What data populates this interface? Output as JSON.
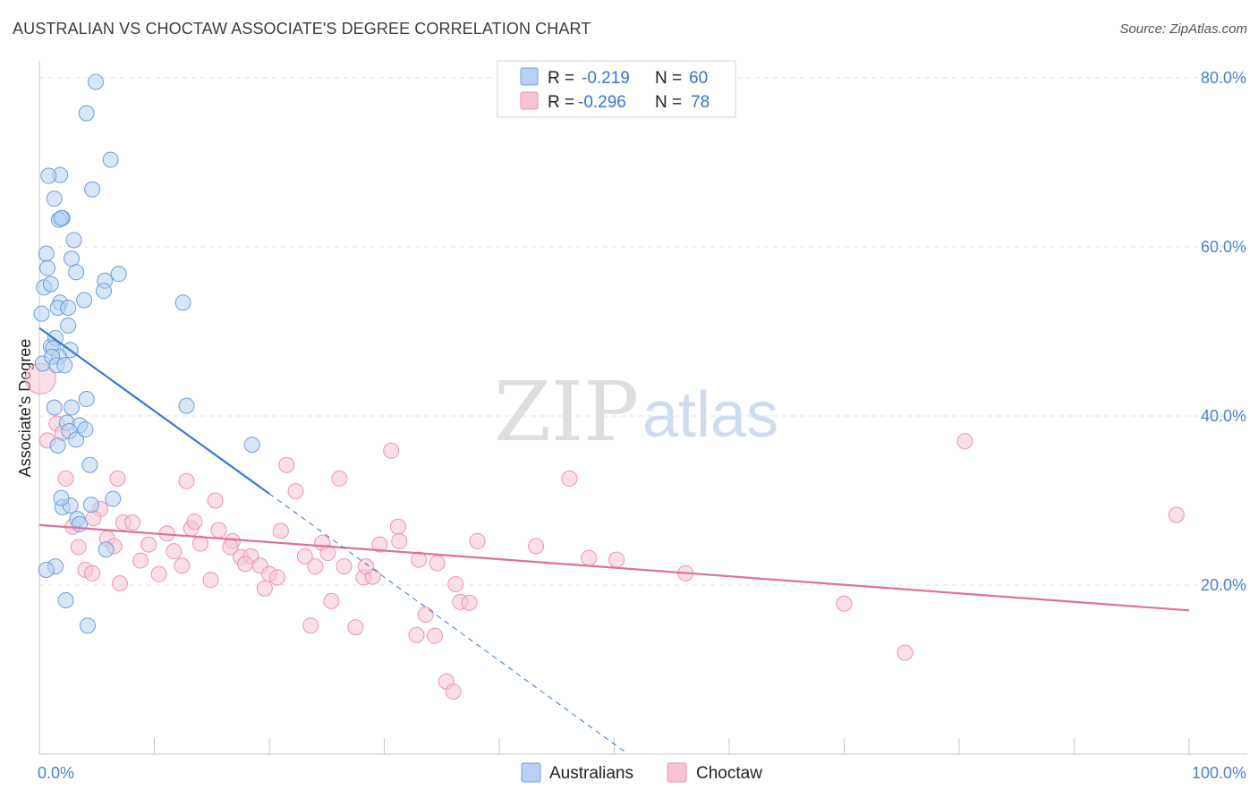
{
  "title": "AUSTRALIAN VS CHOCTAW ASSOCIATE'S DEGREE CORRELATION CHART",
  "source": "Source: ZipAtlas.com",
  "watermark": {
    "zip": "ZIP",
    "atlas": "atlas"
  },
  "colors": {
    "australians_fill": "#b8d1f3",
    "australians_stroke": "#6e9fe0",
    "australians_line": "#3a78d6",
    "choctaw_fill": "#f8c4d4",
    "choctaw_stroke": "#ee93b2",
    "choctaw_line": "#e0709a",
    "tick_text": "#4a7fd4",
    "grid": "#e2e2e2"
  },
  "legend_stats": [
    {
      "r_label": "R =",
      "r_value": "-0.219",
      "n_label": "N =",
      "n_value": "60"
    },
    {
      "r_label": "R =",
      "r_value": "-0.296",
      "n_label": "N =",
      "n_value": "78"
    }
  ],
  "chart_data": {
    "type": "scatter",
    "xlabel": "",
    "ylabel": "Associate's Degree",
    "xlim": [
      0,
      100
    ],
    "ylim": [
      0,
      82
    ],
    "x_tick_labels": [
      "0.0%",
      "100.0%"
    ],
    "y_ticks": [
      20,
      40,
      60,
      80
    ],
    "y_tick_labels": [
      "20.0%",
      "40.0%",
      "60.0%",
      "80.0%"
    ],
    "grid": true,
    "legend_position": "bottom-center",
    "series": [
      {
        "name": "Australians",
        "x": [
          4.9,
          4.1,
          1.8,
          2.0,
          6.2,
          0.8,
          1.3,
          1.7,
          1.9,
          4.6,
          3.0,
          0.6,
          0.7,
          0.4,
          2.8,
          3.2,
          5.7,
          6.9,
          1.8,
          0.2,
          1.6,
          2.5,
          0.3,
          1.0,
          1.4,
          1.2,
          2.7,
          1.7,
          1.1,
          1.5,
          2.2,
          3.9,
          5.6,
          2.5,
          1.6,
          2.8,
          1.3,
          2.4,
          3.5,
          2.6,
          4.1,
          3.2,
          4.4,
          6.4,
          2.0,
          2.7,
          3.3,
          1.9,
          3.5,
          1.4,
          0.6,
          5.8,
          2.3,
          4.2,
          4.0,
          4.5,
          1.0,
          12.5,
          12.8,
          18.5
        ],
        "y": [
          79.5,
          75.8,
          68.5,
          63.4,
          70.3,
          68.4,
          65.7,
          63.2,
          63.4,
          66.8,
          60.8,
          59.2,
          57.5,
          55.2,
          58.6,
          57.0,
          56.0,
          56.8,
          53.4,
          52.1,
          52.8,
          52.8,
          46.2,
          48.2,
          49.2,
          48.0,
          47.8,
          47.0,
          47.0,
          46.0,
          46.0,
          53.7,
          54.8,
          50.7,
          36.5,
          41.0,
          41.0,
          39.2,
          38.9,
          38.2,
          42.0,
          37.2,
          34.2,
          30.2,
          29.2,
          29.4,
          27.8,
          30.3,
          27.2,
          22.2,
          21.8,
          24.2,
          18.2,
          15.2,
          38.4,
          29.5,
          55.6,
          53.4,
          41.2,
          36.6
        ]
      },
      {
        "name": "Choctaw",
        "x": [
          0.1,
          0.7,
          1.5,
          2.0,
          2.9,
          3.4,
          4.0,
          4.6,
          5.3,
          5.9,
          6.5,
          7.0,
          7.3,
          8.1,
          8.8,
          9.5,
          10.4,
          11.1,
          11.7,
          12.4,
          13.2,
          14.0,
          14.9,
          15.6,
          16.8,
          17.5,
          18.4,
          19.2,
          20.0,
          20.7,
          21.5,
          22.3,
          23.1,
          24.0,
          24.6,
          25.4,
          26.1,
          27.5,
          28.2,
          29.0,
          30.6,
          31.2,
          32.8,
          33.6,
          34.4,
          35.4,
          36.0,
          36.6,
          37.4,
          38.1,
          12.8,
          13.5,
          15.3,
          16.6,
          17.9,
          19.6,
          21.0,
          23.6,
          25.1,
          26.5,
          28.4,
          29.6,
          31.3,
          33.0,
          34.6,
          36.2,
          43.2,
          46.1,
          47.8,
          50.2,
          56.2,
          70.0,
          75.3,
          80.5,
          98.9,
          2.3,
          4.7,
          6.8
        ],
        "y": [
          44.4,
          37.1,
          39.1,
          38.0,
          26.9,
          24.5,
          21.8,
          21.4,
          29.0,
          25.5,
          24.6,
          20.2,
          27.4,
          27.4,
          22.9,
          24.8,
          21.3,
          26.1,
          24.0,
          22.3,
          26.7,
          24.9,
          20.6,
          26.5,
          25.2,
          23.3,
          23.4,
          22.3,
          21.3,
          20.9,
          34.2,
          31.1,
          23.4,
          22.2,
          25.0,
          18.1,
          32.6,
          15.0,
          20.9,
          21.0,
          35.9,
          26.9,
          14.1,
          16.5,
          14.0,
          8.6,
          7.4,
          18.0,
          17.9,
          25.2,
          32.3,
          27.5,
          30.0,
          24.5,
          22.5,
          19.6,
          26.4,
          15.2,
          23.8,
          22.2,
          22.2,
          24.8,
          25.2,
          23.0,
          22.6,
          20.1,
          24.6,
          32.6,
          23.2,
          23.0,
          21.4,
          17.8,
          12.0,
          37.0,
          28.3,
          32.6,
          27.9,
          32.6
        ]
      }
    ],
    "trend_lines": [
      {
        "series": "Australians",
        "x": [
          0,
          20
        ],
        "y": [
          50.4,
          30.8
        ],
        "extension_x": [
          20,
          51
        ],
        "extension_y": [
          30.8,
          0.2
        ]
      },
      {
        "series": "Choctaw",
        "x": [
          0,
          100
        ],
        "y": [
          27.1,
          17.0
        ]
      }
    ]
  }
}
